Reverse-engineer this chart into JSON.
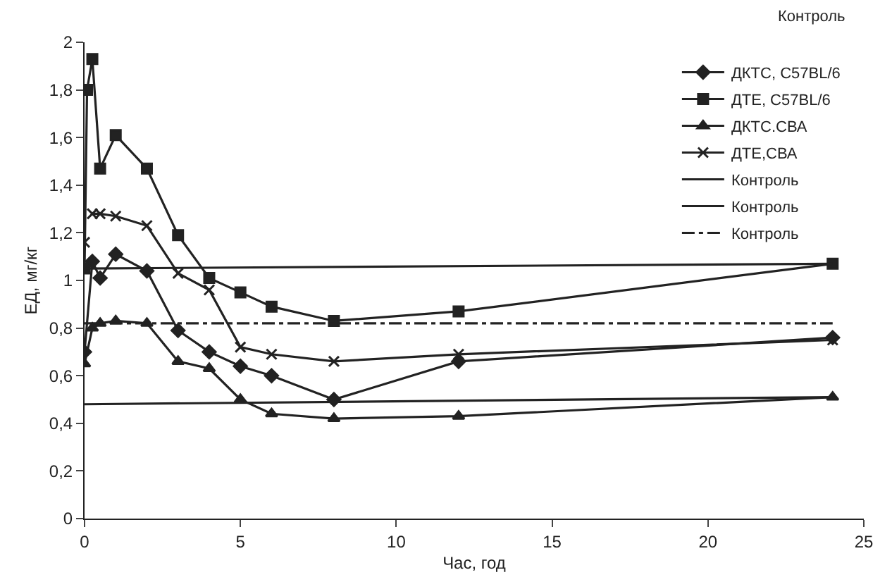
{
  "chart_data": {
    "type": "line",
    "xlabel": "Час, год",
    "ylabel": "ЕД, мг/кг",
    "xlim": [
      0,
      25
    ],
    "xticks": [
      0,
      5,
      10,
      15,
      20,
      25
    ],
    "ylim": [
      0,
      2
    ],
    "yticks": [
      0,
      {
        "value": 0.2,
        "label": "0,2"
      },
      {
        "value": 0.4,
        "label": "0,4"
      },
      {
        "value": 0.6,
        "label": "0,6"
      },
      {
        "value": 0.8,
        "label": "0,8"
      },
      1,
      {
        "value": 1.2,
        "label": "1,2"
      },
      {
        "value": 1.4,
        "label": "1,4"
      },
      {
        "value": 1.6,
        "label": "1,6"
      },
      {
        "value": 1.8,
        "label": "1,8"
      },
      2
    ],
    "grid": false,
    "legend": "top right",
    "line_style": "solid",
    "series": [
      {
        "name": "ДКТС, C57BL/6",
        "color": "#222222",
        "marker": "diamond",
        "x": [
          0,
          0.25,
          0.5,
          1,
          2,
          3,
          4,
          5,
          6,
          8,
          12,
          24
        ],
        "values": [
          0.7,
          1.08,
          1.01,
          1.11,
          1.04,
          0.79,
          0.7,
          0.64,
          0.6,
          0.5,
          0.66,
          0.76
        ]
      },
      {
        "name": "ДТЕ, C57BL/6",
        "color": "#222222",
        "marker": "square",
        "x": [
          0,
          0.08,
          0.25,
          0.5,
          1,
          2,
          3,
          4,
          5,
          6,
          8,
          12,
          24
        ],
        "values": [
          1.05,
          1.8,
          1.93,
          1.47,
          1.61,
          1.47,
          1.19,
          1.01,
          0.95,
          0.89,
          0.83,
          0.87,
          1.07
        ]
      },
      {
        "name": "ДКТС.СВА",
        "color": "#222222",
        "marker": "triangle",
        "x": [
          0,
          0.25,
          0.5,
          1,
          2,
          3,
          4,
          5,
          6,
          8,
          12,
          24
        ],
        "values": [
          0.65,
          0.8,
          0.82,
          0.83,
          0.82,
          0.66,
          0.63,
          0.5,
          0.44,
          0.42,
          0.43,
          0.51
        ]
      },
      {
        "name": "ДТЕ,СВА",
        "color": "#222222",
        "marker": "cross",
        "x": [
          0,
          0.08,
          0.25,
          0.5,
          1,
          2,
          3,
          4,
          5,
          6,
          8,
          12,
          24
        ],
        "values": [
          1.16,
          null,
          1.28,
          1.28,
          1.27,
          1.23,
          1.03,
          0.96,
          0.72,
          0.69,
          0.66,
          0.69,
          0.75
        ]
      },
      {
        "name": "Контроль",
        "color": "#222222",
        "marker": "none",
        "x": [
          0,
          24
        ],
        "values": [
          1.05,
          1.07
        ]
      },
      {
        "name": "Контроль",
        "color": "#222222",
        "marker": "none",
        "x": [
          0,
          24
        ],
        "values": [
          0.48,
          0.51
        ]
      },
      {
        "name": "Контроль",
        "color": "#222222",
        "marker": "none",
        "line_style": "dashed",
        "x": [
          0,
          24
        ],
        "values": [
          0.82,
          0.82
        ]
      }
    ],
    "annotations": [
      "Контроль"
    ]
  }
}
